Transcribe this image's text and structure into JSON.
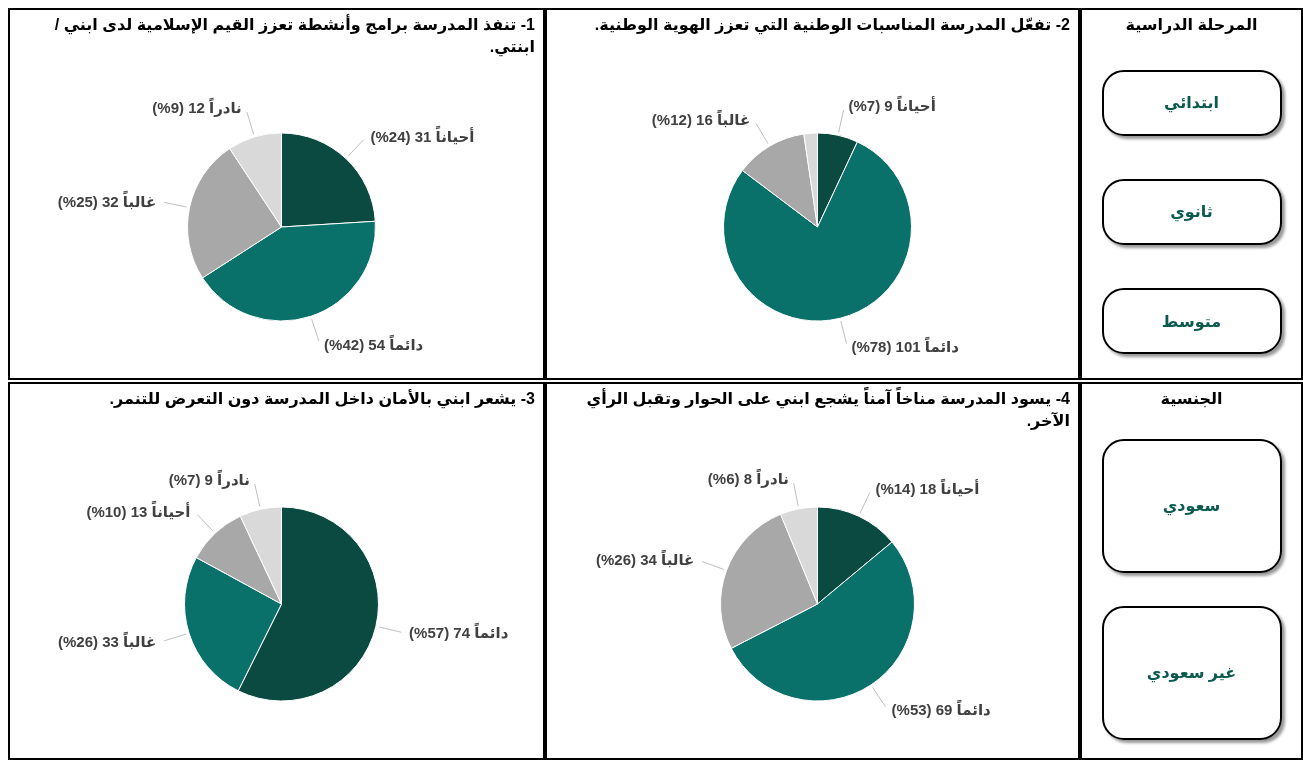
{
  "chart_data": [
    {
      "type": "pie",
      "title": "1- تنفذ المدرسة برامج وأنشطة تعزز القيم الإسلامية لدى ابني / ابنتي.",
      "categories": [
        "أحياناً",
        "دائماً",
        "غالباً",
        "نادراً"
      ],
      "values": [
        31,
        54,
        32,
        12
      ],
      "colors": [
        "#0b4a40",
        "#0a706a",
        "#a8a8a8",
        "#d9d9d9"
      ],
      "value_labels": [
        "31 (24%)",
        "54 (42%)",
        "32 (25%)",
        "12 (9%)"
      ]
    },
    {
      "type": "pie",
      "title": "2- تفعّل المدرسة المناسبات الوطنية التي تعزز الهوية الوطنية.",
      "categories": [
        "أحياناً",
        "دائماً",
        "غالباً",
        null
      ],
      "values": [
        9,
        101,
        16,
        3
      ],
      "colors": [
        "#0b4a40",
        "#0a706a",
        "#a8a8a8",
        "#d9d9d9"
      ],
      "value_labels": [
        "9 (7%)",
        "101 (78%)",
        "16 (12%)",
        null
      ]
    },
    {
      "type": "other",
      "title": "المرحلة الدراسية",
      "categories": [
        "ابتدائي",
        "ثانوي",
        "متوسط"
      ]
    },
    {
      "type": "pie",
      "title": "3- يشعر ابني بالأمان داخل المدرسة دون التعرض للتنمر.",
      "categories": [
        "دائماً",
        "غالباً",
        "أحياناً",
        "نادراً"
      ],
      "values": [
        74,
        33,
        13,
        9
      ],
      "colors": [
        "#0b4a40",
        "#0a706a",
        "#a8a8a8",
        "#d9d9d9"
      ],
      "value_labels": [
        "74 (57%)",
        "33 (26%)",
        "13 (10%)",
        "9 (7%)"
      ]
    },
    {
      "type": "pie",
      "title": "4- يسود المدرسة مناخاً آمناً يشجع ابني على الحوار وتقبل الرأي الآخر.",
      "categories": [
        "أحياناً",
        "دائماً",
        "غالباً",
        "نادراً"
      ],
      "values": [
        18,
        69,
        34,
        8
      ],
      "colors": [
        "#0b4a40",
        "#0a706a",
        "#a8a8a8",
        "#d9d9d9"
      ],
      "value_labels": [
        "18 (14%)",
        "69 (53%)",
        "34 (26%)",
        "8 (6%)"
      ]
    },
    {
      "type": "other",
      "title": "الجنسية",
      "categories": [
        "سعودي",
        "غير سعودي"
      ]
    }
  ]
}
